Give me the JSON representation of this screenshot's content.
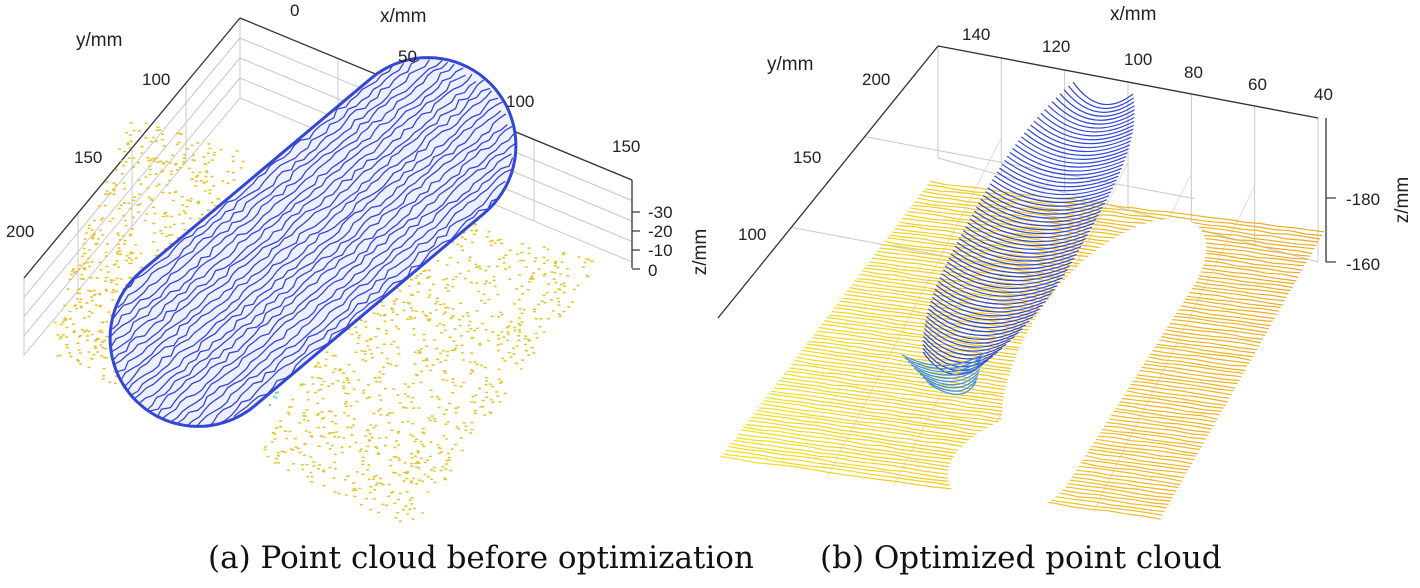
{
  "colors": {
    "blue": "#3346d6",
    "blue_light": "#3f8fe0",
    "yellow": "#e8c22a",
    "yellow_bright": "#f2e21c",
    "orange": "#e9a826",
    "cyan": "#3fb6d4",
    "grid": "#c8c8c8",
    "axis": "#333333"
  },
  "chart_data": [
    {
      "type": "scatter",
      "title": "(a) Point cloud before optimization",
      "caption": "(a) Point cloud before optimization",
      "xlabel": "x/mm",
      "ylabel": "y/mm",
      "zlabel": "z/mm",
      "x_ticks": [
        "0",
        "50",
        "100",
        "150"
      ],
      "y_ticks": [
        "100",
        "150",
        "200"
      ],
      "z_ticks": [
        "-30",
        "-20",
        "-10",
        "0"
      ],
      "series": [
        {
          "name": "workpiece surface",
          "color": "blue"
        },
        {
          "name": "base plane",
          "color": "yellow"
        },
        {
          "name": "edge points",
          "color": "cyan"
        }
      ]
    },
    {
      "type": "line",
      "title": "(b) Optimized point cloud",
      "caption": "(b) Optimized point cloud",
      "xlabel": "x/mm",
      "ylabel": "y/mm",
      "zlabel": "z/mm",
      "x_ticks": [
        "140",
        "120",
        "100",
        "80",
        "60",
        "40"
      ],
      "y_ticks": [
        "200",
        "150",
        "100"
      ],
      "z_ticks": [
        "-180",
        "-160"
      ],
      "series": [
        {
          "name": "workpiece scan lines",
          "color": "blue"
        },
        {
          "name": "base plane scan lines",
          "color": "yellow"
        }
      ]
    }
  ]
}
